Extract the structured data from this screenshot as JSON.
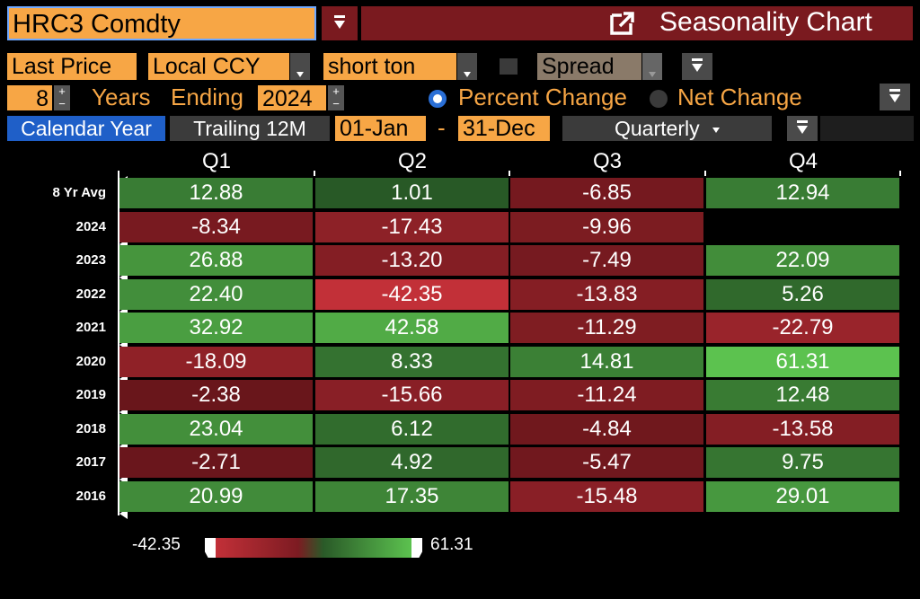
{
  "header": {
    "ticker": "HRC3 Comdty",
    "title": "Seasonality Chart"
  },
  "controls": {
    "price_field": "Last Price",
    "currency": "Local CCY",
    "unit": "short ton",
    "spread_label": "Spread",
    "years": "8",
    "years_label": "Years",
    "ending_label": "Ending",
    "ending_year": "2024",
    "percent_change_label": "Percent Change",
    "net_change_label": "Net Change",
    "calendar_year_label": "Calendar Year",
    "trailing_label": "Trailing 12M",
    "start_date": "01-Jan",
    "date_separator": "-",
    "end_date": "31-Dec",
    "period": "Quarterly"
  },
  "colors": {
    "accent_orange": "#f7a645",
    "title_bar": "#7a1a1f",
    "calendar_tab": "#1f5fc8",
    "positive_max": "#5cc24f",
    "negative_max": "#c23038"
  },
  "chart_data": {
    "type": "heatmap",
    "columns": [
      "Q1",
      "Q2",
      "Q3",
      "Q4"
    ],
    "rows": [
      {
        "label": "8 Yr Avg",
        "values": [
          "12.88",
          "1.01",
          "-6.85",
          "12.94"
        ]
      },
      {
        "label": "2024",
        "values": [
          "-8.34",
          "-17.43",
          "-9.96",
          null
        ]
      },
      {
        "label": "2023",
        "values": [
          "26.88",
          "-13.20",
          "-7.49",
          "22.09"
        ]
      },
      {
        "label": "2022",
        "values": [
          "22.40",
          "-42.35",
          "-13.83",
          "5.26"
        ]
      },
      {
        "label": "2021",
        "values": [
          "32.92",
          "42.58",
          "-11.29",
          "-22.79"
        ]
      },
      {
        "label": "2020",
        "values": [
          "-18.09",
          "8.33",
          "14.81",
          "61.31"
        ]
      },
      {
        "label": "2019",
        "values": [
          "-2.38",
          "-15.66",
          "-11.24",
          "12.48"
        ]
      },
      {
        "label": "2018",
        "values": [
          "23.04",
          "6.12",
          "-4.84",
          "-13.58"
        ]
      },
      {
        "label": "2017",
        "values": [
          "-2.71",
          "4.92",
          "-5.47",
          "9.75"
        ]
      },
      {
        "label": "2016",
        "values": [
          "20.99",
          "17.35",
          "-15.48",
          "29.01"
        ]
      }
    ],
    "scale_min": "-42.35",
    "scale_max": "61.31"
  }
}
